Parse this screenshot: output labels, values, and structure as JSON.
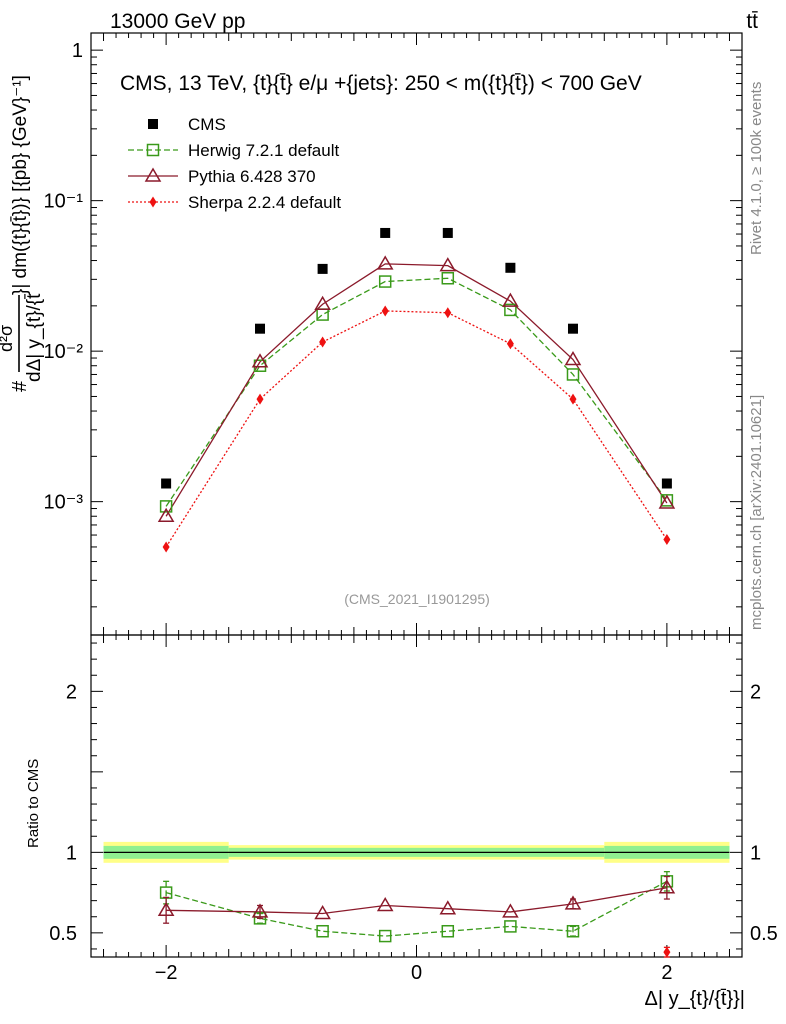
{
  "header": {
    "energy_label": "13000 GeV pp",
    "process_label": "tt̄",
    "rivet_label": "Rivet 4.1.0, ≥ 100k events",
    "mcplots_label": "mcplots.cern.ch [arXiv:2401.10621]",
    "analysis_id": "(CMS_2021_I1901295)"
  },
  "chart_data": [
    {
      "type": "scatter",
      "panel": "main",
      "title": "CMS, 13 TeV, {t}{t̄} e/μ +{jets}: 250 < m({t}{t̄}) < 700 GeV",
      "ylabel_parts": [
        "#",
        "d²σ",
        "dΔ| y_{t}/{t̄",
        "}| dm({t}{t̄})} [{pb} {GeV}⁻¹]"
      ],
      "yscale": "log",
      "ylim": [
        0.00013,
        1.3
      ],
      "xlim": [
        -2.6,
        2.6
      ],
      "yticks": [
        {
          "value": 1,
          "label": "1"
        },
        {
          "value": 0.1,
          "label": "10⁻¹"
        },
        {
          "value": 0.01,
          "label": "10⁻²"
        },
        {
          "value": 0.001,
          "label": "10⁻³"
        }
      ],
      "x": [
        -2.0,
        -1.25,
        -0.75,
        -0.25,
        0.25,
        0.75,
        1.25,
        2.0
      ],
      "series": [
        {
          "name": "CMS",
          "color": "#000000",
          "marker": "square",
          "line": "none",
          "values": [
            0.00132,
            0.0141,
            0.0352,
            0.061,
            0.061,
            0.0358,
            0.0141,
            0.00132
          ]
        },
        {
          "name": "Herwig 7.2.1 default",
          "color": "#3a9a1a",
          "marker": "open-square",
          "line": "dashed",
          "values": [
            0.00093,
            0.008,
            0.0175,
            0.029,
            0.0305,
            0.0188,
            0.007,
            0.00102
          ]
        },
        {
          "name": "Pythia 6.428 370",
          "color": "#8b1a2b",
          "marker": "open-triangle",
          "line": "solid",
          "values": [
            0.0008,
            0.0085,
            0.0205,
            0.038,
            0.037,
            0.0215,
            0.0088,
            0.00098
          ]
        },
        {
          "name": "Sherpa 2.2.4 default",
          "color": "#ee1111",
          "marker": "diamond",
          "line": "dotted",
          "values": [
            0.0005,
            0.0048,
            0.0115,
            0.0185,
            0.018,
            0.0112,
            0.0048,
            0.00056
          ]
        }
      ]
    },
    {
      "type": "scatter",
      "panel": "ratio",
      "ylabel": "Ratio to CMS",
      "xlabel": "Δ| y_{t}/{t̄}}|",
      "ylim": [
        0.35,
        2.35
      ],
      "xlim": [
        -2.6,
        2.6
      ],
      "yticks": [
        {
          "value": 0.5,
          "label": "0.5"
        },
        {
          "value": 1,
          "label": "1"
        },
        {
          "value": 2,
          "label": "2"
        }
      ],
      "xticks": [
        {
          "value": -2,
          "label": "−2"
        },
        {
          "value": 0,
          "label": "0"
        },
        {
          "value": 2,
          "label": "2"
        }
      ],
      "x": [
        -2.0,
        -1.25,
        -0.75,
        -0.25,
        0.25,
        0.75,
        1.25,
        2.0
      ],
      "bands": {
        "bin_edges": [
          -2.5,
          -1.5,
          1.5,
          2.5
        ],
        "outer_halfwidth": [
          0.065,
          0.045,
          0.065
        ],
        "inner_halfwidth": [
          0.04,
          0.028,
          0.04
        ],
        "outer_color": "#ffff88",
        "inner_color": "#90f090"
      },
      "series": [
        {
          "name": "Herwig 7.2.1 default",
          "color": "#3a9a1a",
          "marker": "open-square",
          "line": "dashed",
          "values": [
            0.75,
            0.59,
            0.51,
            0.48,
            0.51,
            0.54,
            0.51,
            0.82
          ],
          "errors": [
            0.07,
            0.03,
            0.0,
            0.0,
            0.0,
            0.0,
            0.03,
            0.06
          ]
        },
        {
          "name": "Pythia 6.428 370",
          "color": "#8b1a2b",
          "marker": "open-triangle",
          "line": "solid",
          "values": [
            0.64,
            0.63,
            0.62,
            0.67,
            0.65,
            0.63,
            0.68,
            0.78
          ],
          "errors": [
            0.08,
            0.04,
            0.0,
            0.0,
            0.0,
            0.0,
            0.03,
            0.07
          ]
        },
        {
          "name": "Sherpa 2.2.4 default",
          "color": "#ee1111",
          "marker": "diamond",
          "line": "dotted",
          "values": [
            null,
            null,
            null,
            null,
            null,
            null,
            null,
            0.38
          ],
          "errors": [
            0,
            0,
            0,
            0,
            0,
            0,
            0,
            0.03
          ]
        }
      ]
    }
  ]
}
